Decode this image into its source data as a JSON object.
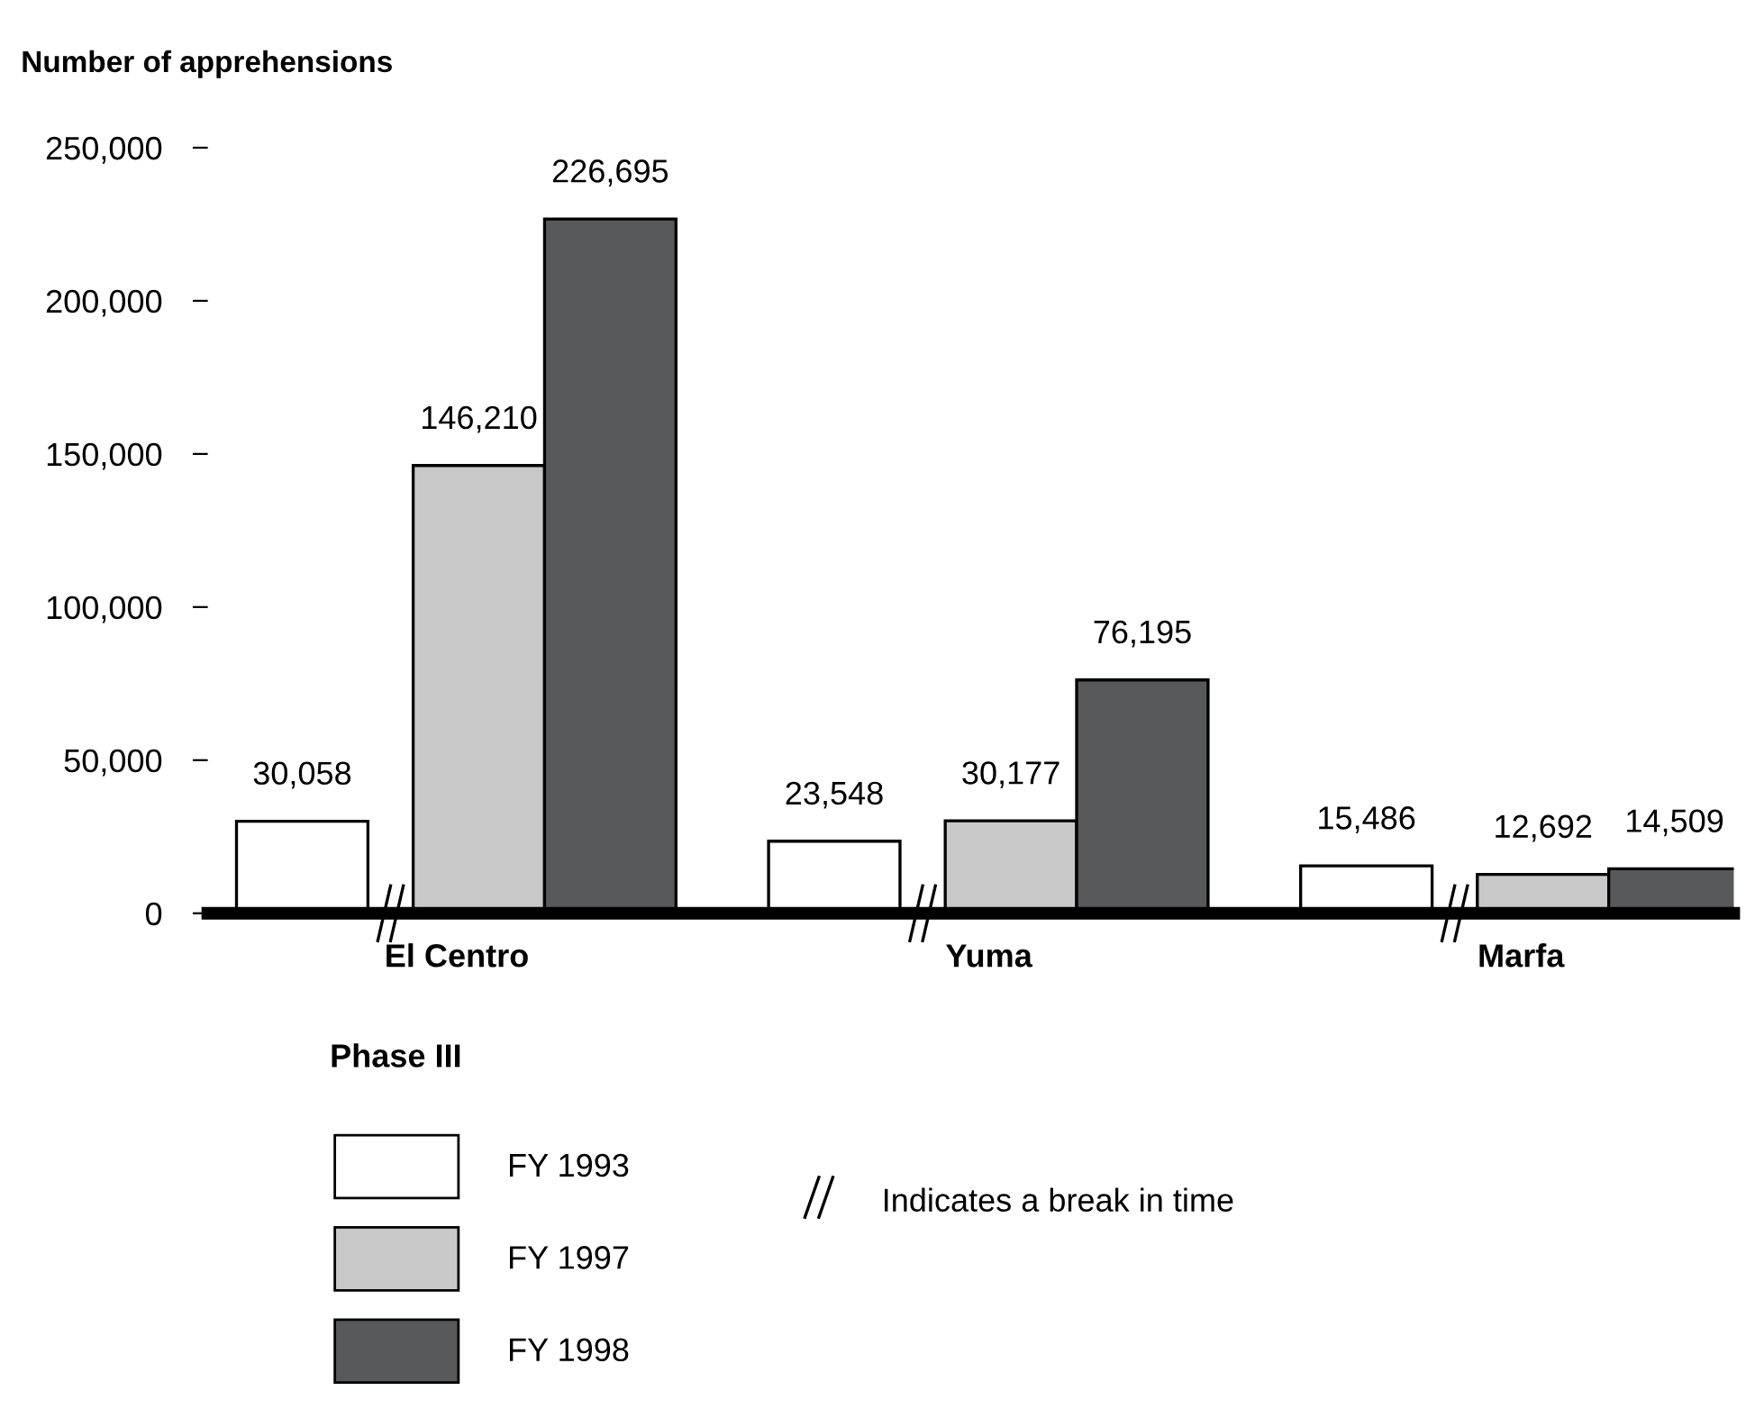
{
  "chart_data": {
    "type": "bar",
    "ylabel": "Number of apprehensions",
    "xlabel": "Phase III",
    "categories": [
      "El Centro",
      "Yuma",
      "Marfa"
    ],
    "series": [
      {
        "name": "FY 1993",
        "color": "#ffffff",
        "values": [
          30058,
          23548,
          15486
        ],
        "value_labels": [
          "30,058",
          "23,548",
          "15,486"
        ]
      },
      {
        "name": "FY 1997",
        "color": "#c8c8c8",
        "values": [
          146210,
          30177,
          12692
        ],
        "value_labels": [
          "146,210",
          "30,177",
          "12,692"
        ]
      },
      {
        "name": "FY 1998",
        "color": "#58595b",
        "values": [
          226695,
          76195,
          14509
        ],
        "value_labels": [
          "226,695",
          "76,195",
          "14,509"
        ]
      }
    ],
    "ylim": [
      0,
      250000
    ],
    "yticks": [
      0,
      {
        "value": 50000,
        "label": "50,000"
      },
      {
        "value": 100000,
        "label": "100,000"
      },
      {
        "value": 150000,
        "label": "150,000"
      },
      {
        "value": 200000,
        "label": "200,000"
      },
      {
        "value": 250000,
        "label": "250,000"
      }
    ],
    "grid": false,
    "legend": "bottom",
    "annotations": [
      "Indicates a break in time"
    ]
  }
}
